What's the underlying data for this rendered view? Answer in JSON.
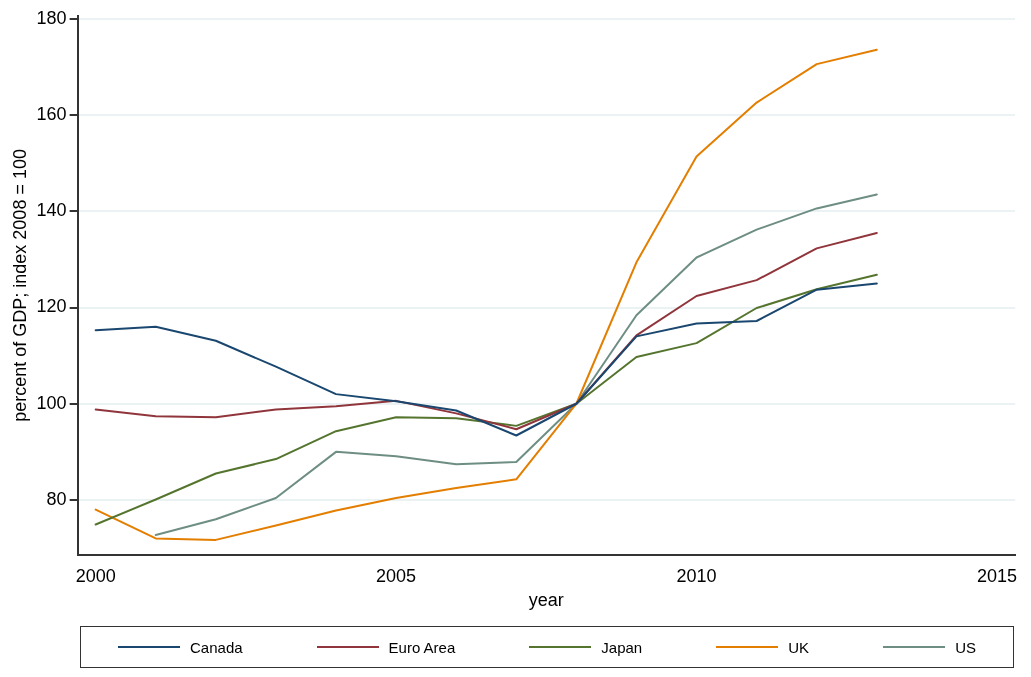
{
  "chart_data": {
    "type": "line",
    "xlabel": "year",
    "ylabel": "percent of GDP; index 2008 = 100",
    "x": [
      2000,
      2001,
      2002,
      2003,
      2004,
      2005,
      2006,
      2007,
      2008,
      2009,
      2010,
      2011,
      2012,
      2013
    ],
    "series": [
      {
        "name": "Canada",
        "color": "#1a476f",
        "values": [
          115.3,
          116.0,
          113.1,
          107.7,
          102.0,
          100.5,
          98.6,
          93.4,
          100,
          114.0,
          116.7,
          117.2,
          123.7,
          125.0
        ]
      },
      {
        "name": "Euro Area",
        "color": "#90353b",
        "values": [
          98.8,
          97.4,
          97.2,
          98.8,
          99.5,
          100.6,
          98.0,
          94.7,
          100,
          114.2,
          122.4,
          125.7,
          132.3,
          135.5
        ]
      },
      {
        "name": "Japan",
        "color": "#55752f",
        "values": [
          74.9,
          80.1,
          85.5,
          88.5,
          94.3,
          97.2,
          97.0,
          95.4,
          100,
          109.7,
          112.6,
          119.9,
          123.8,
          126.8
        ]
      },
      {
        "name": "UK",
        "color": "#e37e00",
        "values": [
          78.0,
          72.0,
          71.7,
          74.7,
          77.8,
          80.4,
          82.5,
          84.3,
          100,
          129.4,
          151.4,
          162.6,
          170.6,
          173.6
        ]
      },
      {
        "name": "US",
        "color": "#6e8e84",
        "values": [
          null,
          72.7,
          76.0,
          80.4,
          90.0,
          89.1,
          87.4,
          87.9,
          100,
          118.4,
          130.4,
          136.2,
          140.6,
          143.5
        ]
      }
    ],
    "xlim": [
      1999.7,
      2015.3
    ],
    "xticks": [
      2000,
      2005,
      2010,
      2015
    ],
    "ylim": [
      68.6,
      180.6
    ],
    "yticks": [
      80,
      100,
      120,
      140,
      160,
      180
    ],
    "grid": "y",
    "legend": "bottom",
    "marker": "none",
    "line_style": "solid"
  }
}
